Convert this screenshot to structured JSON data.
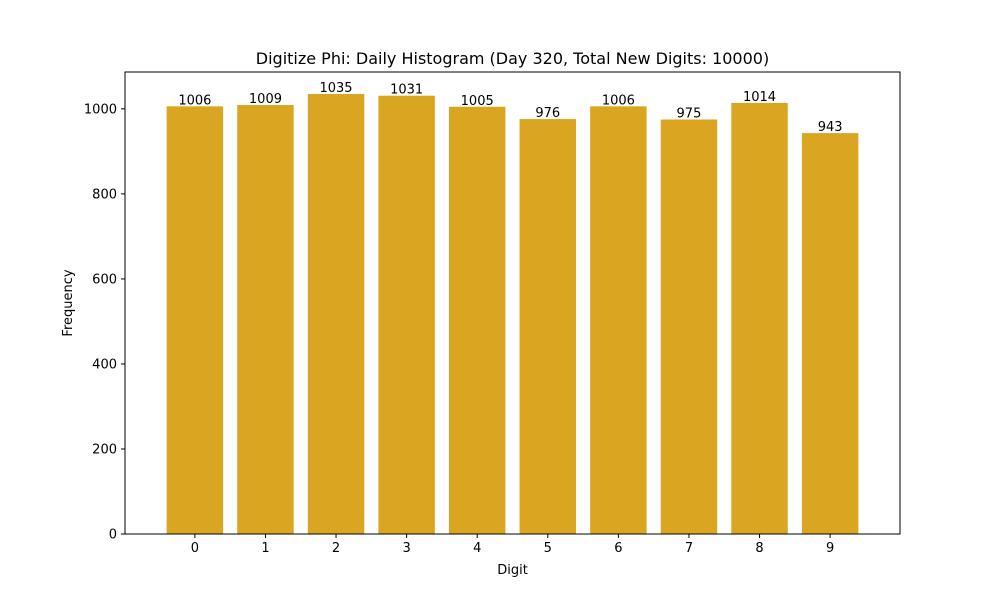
{
  "chart_data": {
    "type": "bar",
    "title": "Digitize Phi: Daily Histogram (Day 320, Total New Digits: 10000)",
    "xlabel": "Digit",
    "ylabel": "Frequency",
    "categories": [
      "0",
      "1",
      "2",
      "3",
      "4",
      "5",
      "6",
      "7",
      "8",
      "9"
    ],
    "values": [
      1006,
      1009,
      1035,
      1031,
      1005,
      976,
      1006,
      975,
      1014,
      943
    ],
    "data_labels": [
      "1006",
      "1009",
      "1035",
      "1031",
      "1005",
      "976",
      "1006",
      "975",
      "1014",
      "943"
    ],
    "yticks": [
      0,
      200,
      400,
      600,
      800,
      1000
    ],
    "ylim": [
      0,
      1086.75
    ],
    "bar_color": "#DAA520",
    "grid": false,
    "legend": "none"
  }
}
